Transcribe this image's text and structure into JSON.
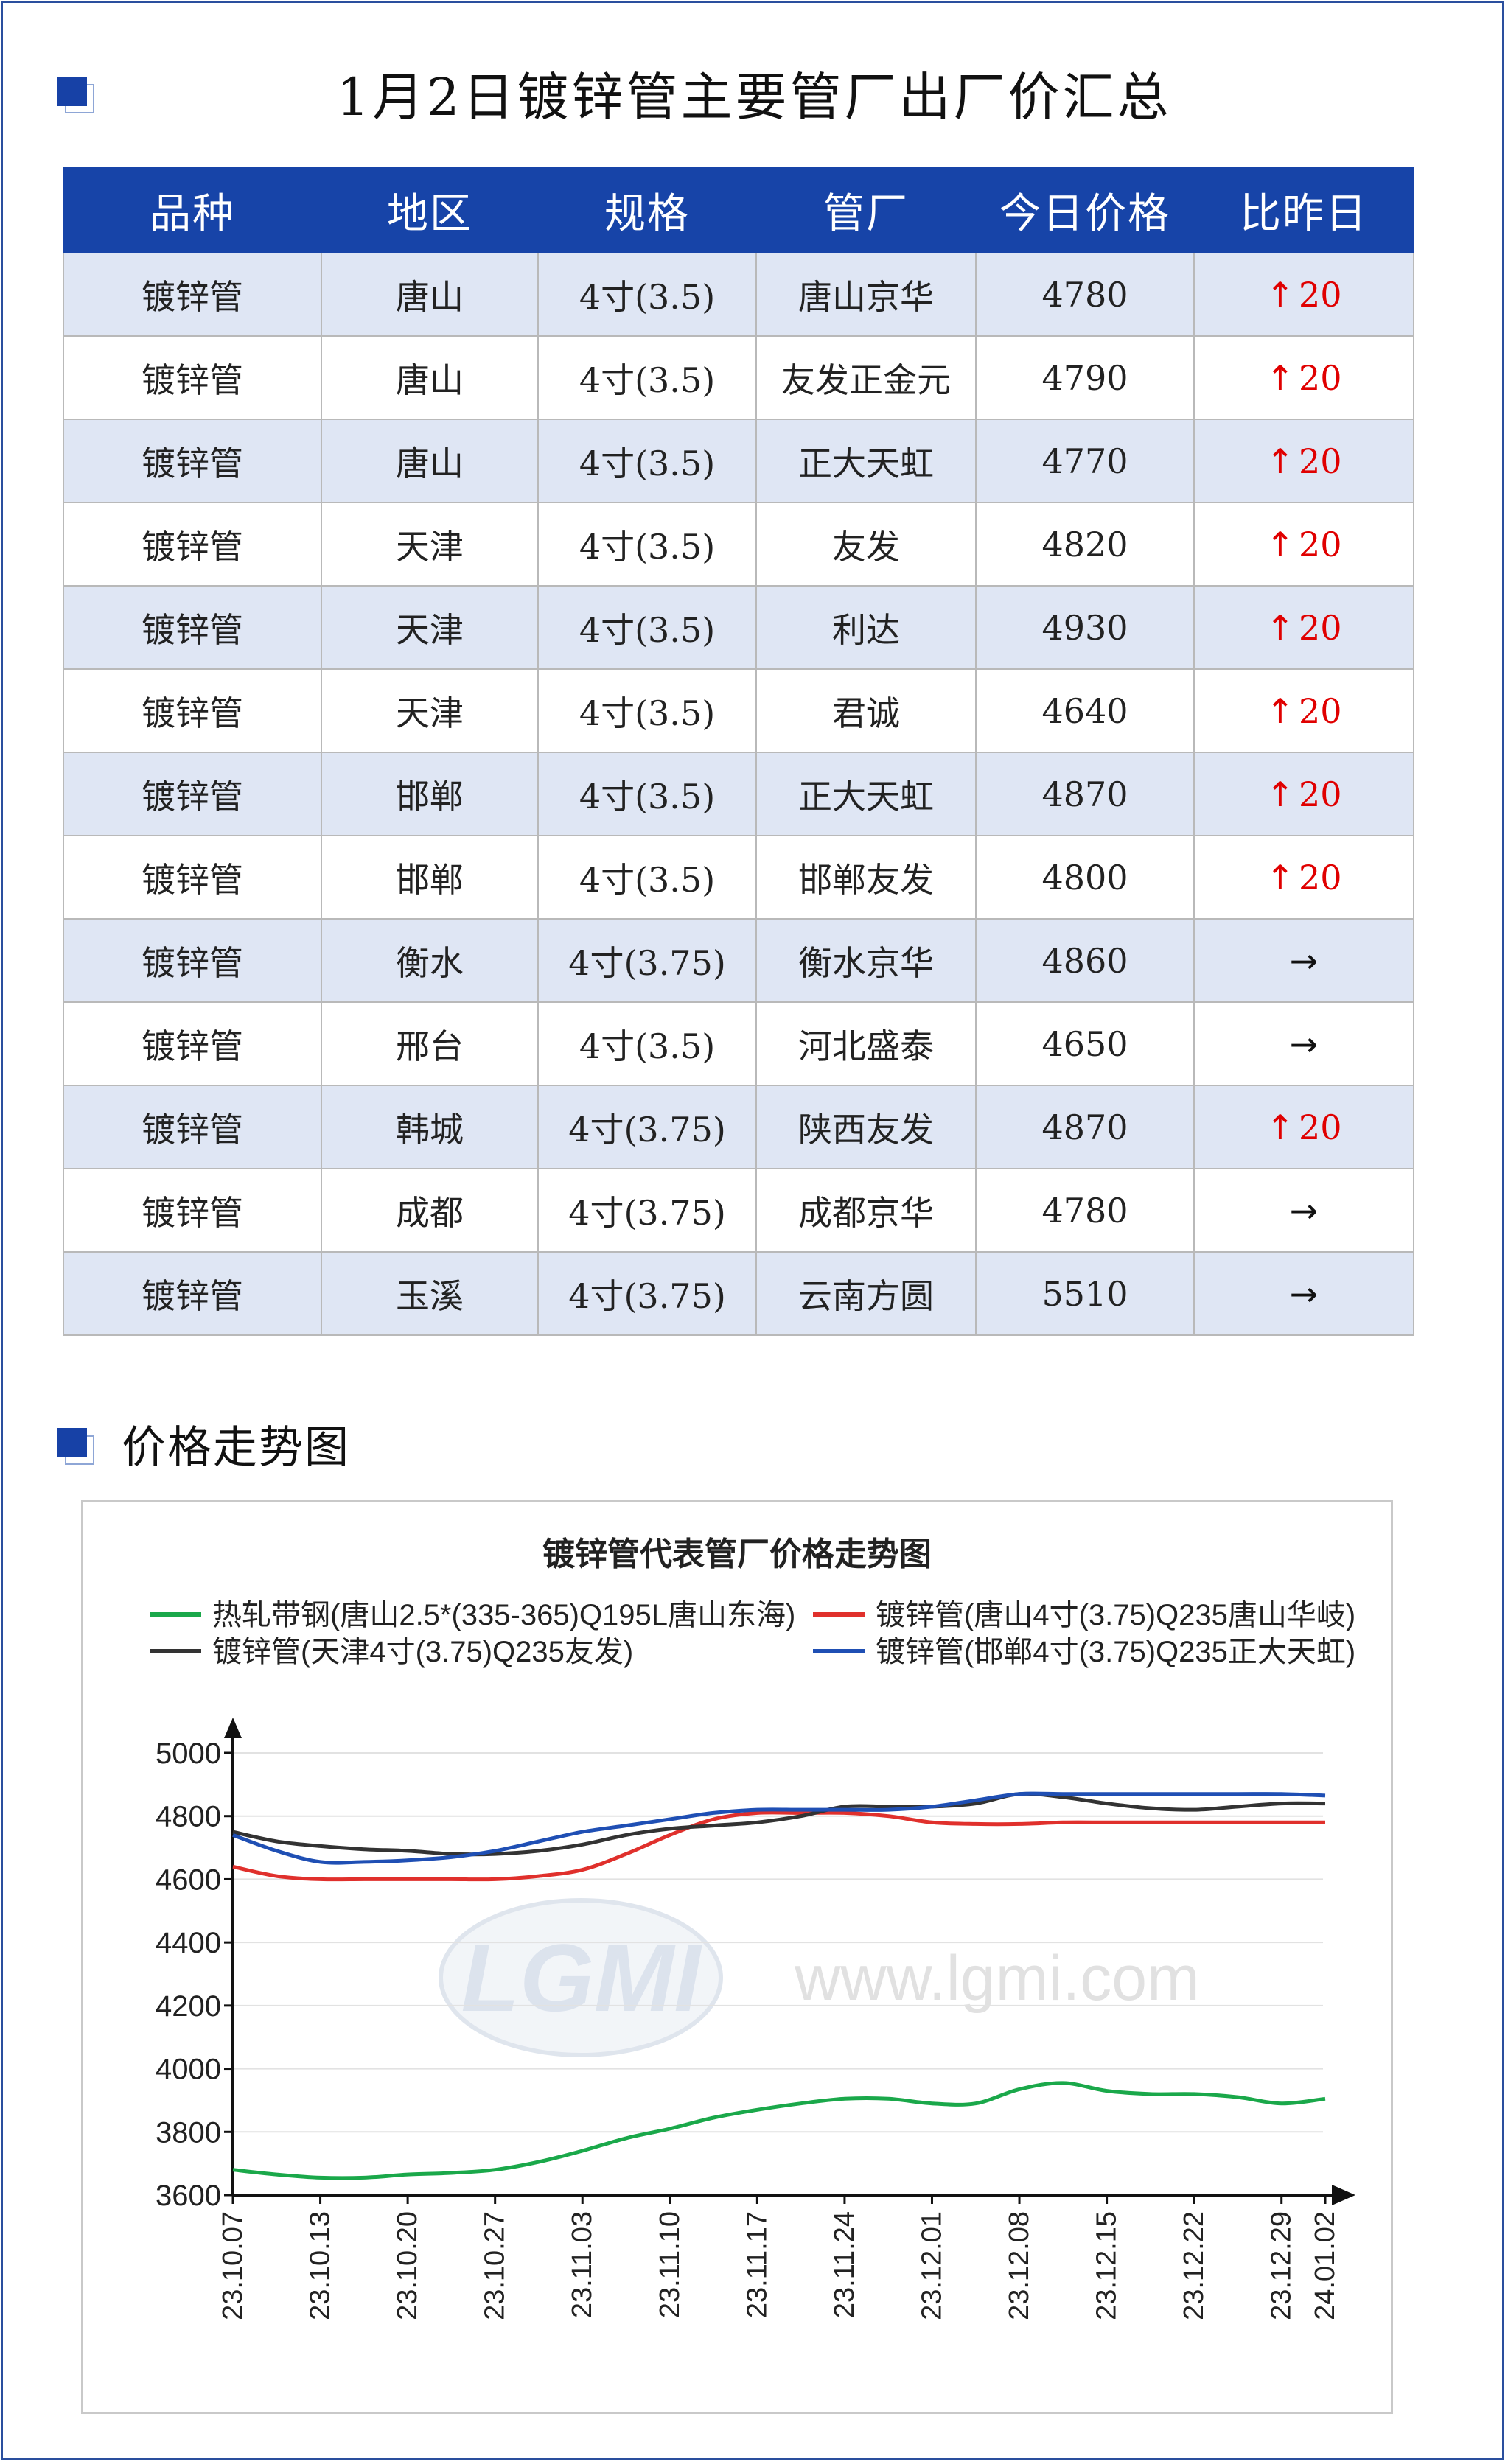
{
  "header": {
    "title": "1月2日镀锌管主要管厂出厂价汇总"
  },
  "table": {
    "columns": [
      "品种",
      "地区",
      "规格",
      "管厂",
      "今日价格",
      "比昨日"
    ],
    "rows": [
      {
        "product": "镀锌管",
        "region": "唐山",
        "spec": "4寸(3.5)",
        "mill": "唐山京华",
        "price": "4780",
        "change_dir": "up",
        "change": "20"
      },
      {
        "product": "镀锌管",
        "region": "唐山",
        "spec": "4寸(3.5)",
        "mill": "友发正金元",
        "price": "4790",
        "change_dir": "up",
        "change": "20"
      },
      {
        "product": "镀锌管",
        "region": "唐山",
        "spec": "4寸(3.5)",
        "mill": "正大天虹",
        "price": "4770",
        "change_dir": "up",
        "change": "20"
      },
      {
        "product": "镀锌管",
        "region": "天津",
        "spec": "4寸(3.5)",
        "mill": "友发",
        "price": "4820",
        "change_dir": "up",
        "change": "20"
      },
      {
        "product": "镀锌管",
        "region": "天津",
        "spec": "4寸(3.5)",
        "mill": "利达",
        "price": "4930",
        "change_dir": "up",
        "change": "20"
      },
      {
        "product": "镀锌管",
        "region": "天津",
        "spec": "4寸(3.5)",
        "mill": "君诚",
        "price": "4640",
        "change_dir": "up",
        "change": "20"
      },
      {
        "product": "镀锌管",
        "region": "邯郸",
        "spec": "4寸(3.5)",
        "mill": "正大天虹",
        "price": "4870",
        "change_dir": "up",
        "change": "20"
      },
      {
        "product": "镀锌管",
        "region": "邯郸",
        "spec": "4寸(3.5)",
        "mill": "邯郸友发",
        "price": "4800",
        "change_dir": "up",
        "change": "20"
      },
      {
        "product": "镀锌管",
        "region": "衡水",
        "spec": "4寸(3.75)",
        "mill": "衡水京华",
        "price": "4860",
        "change_dir": "flat",
        "change": ""
      },
      {
        "product": "镀锌管",
        "region": "邢台",
        "spec": "4寸(3.5)",
        "mill": "河北盛泰",
        "price": "4650",
        "change_dir": "flat",
        "change": ""
      },
      {
        "product": "镀锌管",
        "region": "韩城",
        "spec": "4寸(3.75)",
        "mill": "陕西友发",
        "price": "4870",
        "change_dir": "up",
        "change": "20"
      },
      {
        "product": "镀锌管",
        "region": "成都",
        "spec": "4寸(3.75)",
        "mill": "成都京华",
        "price": "4780",
        "change_dir": "flat",
        "change": ""
      },
      {
        "product": "镀锌管",
        "region": "玉溪",
        "spec": "4寸(3.75)",
        "mill": "云南方圆",
        "price": "5510",
        "change_dir": "flat",
        "change": ""
      }
    ]
  },
  "trend_section": {
    "title": "价格走势图"
  },
  "watermark": {
    "logo_text": "LGMI",
    "url_text": "www.lgmi.com"
  },
  "colors": {
    "header_bg": "#1744a8",
    "row_alt_bg": "#dfe6f4",
    "up": "#e00000"
  },
  "chart_data": {
    "type": "line",
    "title": "镀锌管代表管厂价格走势图",
    "legend_placement": "top",
    "grid": true,
    "ylim": [
      3600,
      5000
    ],
    "yticks": [
      3600,
      3800,
      4000,
      4200,
      4400,
      4600,
      4800,
      5000
    ],
    "x": [
      "23.10.07",
      "23.10.10",
      "23.10.13",
      "23.10.17",
      "23.10.20",
      "23.10.24",
      "23.10.27",
      "23.10.31",
      "23.11.03",
      "23.11.07",
      "23.11.10",
      "23.11.14",
      "23.11.17",
      "23.11.21",
      "23.11.24",
      "23.11.28",
      "23.12.01",
      "23.12.05",
      "23.12.08",
      "23.12.12",
      "23.12.15",
      "23.12.19",
      "23.12.22",
      "23.12.26",
      "23.12.29",
      "24.01.02"
    ],
    "xticks": [
      "23.10.07",
      "23.10.13",
      "23.10.20",
      "23.10.27",
      "23.11.03",
      "23.11.10",
      "23.11.17",
      "23.11.24",
      "23.12.01",
      "23.12.08",
      "23.12.15",
      "23.12.22",
      "23.12.29",
      "24.01.02"
    ],
    "series": [
      {
        "name": "热轧带钢(唐山2.5*(335-365)Q195L唐山东海)",
        "color": "#1aa84a",
        "values": [
          3680,
          3665,
          3655,
          3655,
          3665,
          3670,
          3680,
          3705,
          3740,
          3780,
          3810,
          3845,
          3870,
          3890,
          3905,
          3905,
          3890,
          3890,
          3935,
          3955,
          3930,
          3920,
          3920,
          3910,
          3890,
          3905
        ]
      },
      {
        "name": "镀锌管(唐山4寸(3.75)Q235唐山华岐)",
        "color": "#e0302c",
        "values": [
          4640,
          4610,
          4600,
          4600,
          4600,
          4600,
          4600,
          4610,
          4630,
          4680,
          4740,
          4790,
          4810,
          4810,
          4810,
          4800,
          4780,
          4775,
          4775,
          4780,
          4780,
          4780,
          4780,
          4780,
          4780,
          4780
        ]
      },
      {
        "name": "镀锌管(天津4寸(3.75)Q235友发)",
        "color": "#333333",
        "values": [
          4750,
          4720,
          4705,
          4695,
          4690,
          4680,
          4680,
          4690,
          4710,
          4740,
          4760,
          4770,
          4780,
          4800,
          4830,
          4830,
          4830,
          4840,
          4870,
          4860,
          4840,
          4825,
          4820,
          4830,
          4840,
          4840
        ]
      },
      {
        "name": "镀锌管(邯郸4寸(3.75)Q235正大天虹)",
        "color": "#1f4fb4",
        "values": [
          4740,
          4690,
          4655,
          4655,
          4660,
          4670,
          4690,
          4720,
          4750,
          4770,
          4790,
          4810,
          4820,
          4820,
          4820,
          4820,
          4830,
          4850,
          4870,
          4870,
          4870,
          4870,
          4870,
          4870,
          4870,
          4865
        ]
      }
    ]
  }
}
